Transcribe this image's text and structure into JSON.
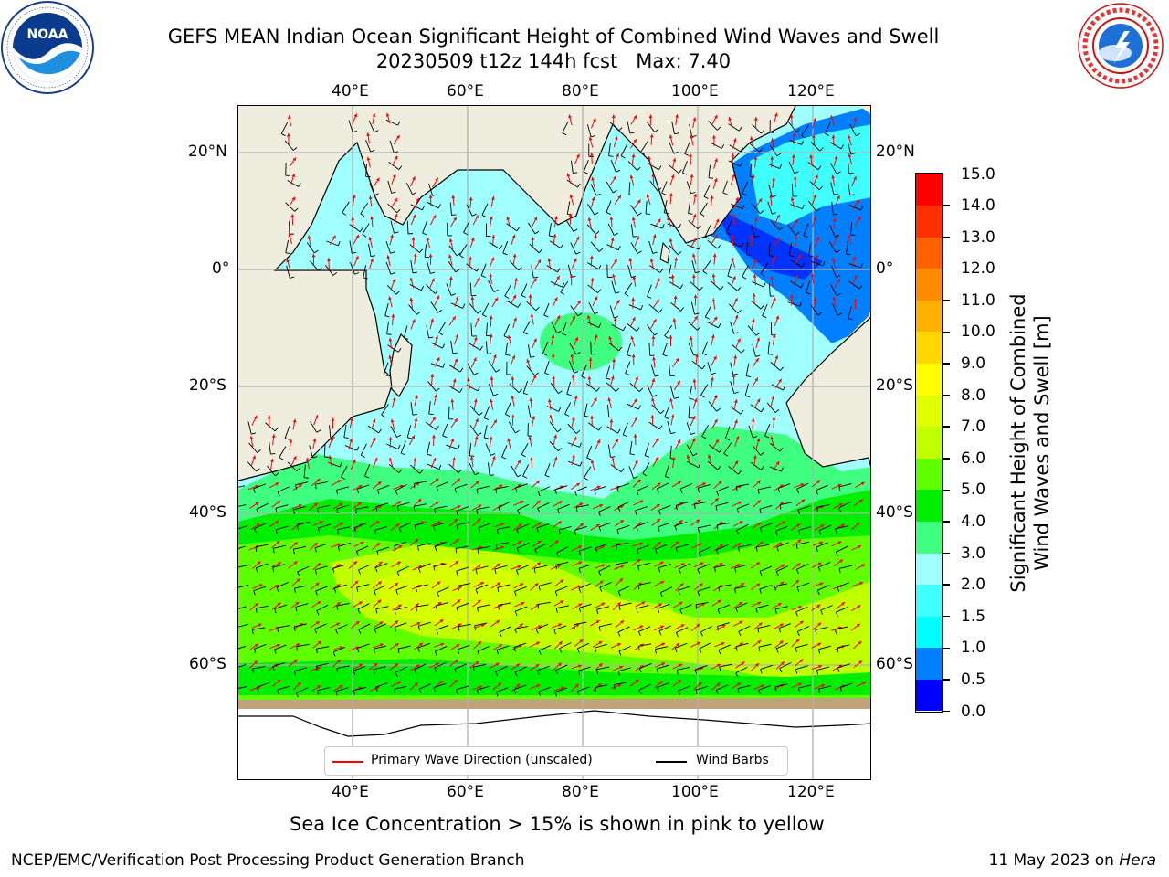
{
  "title": {
    "line1": "GEFS MEAN Indian Ocean Significant Height of Combined Wind Waves and Swell",
    "line2": "20230509 t12z 144h fcst   Max: 7.40"
  },
  "logos": {
    "left": {
      "icon": "noaa-logo-icon",
      "name": "NOAA",
      "ring_text": "NATIONAL OCEANIC AND ATMOSPHERIC ADMINISTRATION · U.S. DEPARTMENT OF COMMERCE"
    },
    "right": {
      "icon": "nws-logo-icon",
      "ring_text": "NATIONAL WEATHER SERVICE"
    }
  },
  "map": {
    "lon_ticks": [
      "40°E",
      "60°E",
      "80°E",
      "100°E",
      "120°E"
    ],
    "lat_ticks": [
      "20°N",
      "0°",
      "20°S",
      "40°S",
      "60°S"
    ],
    "land_color": "#efedde",
    "ice_color": "#ffffff",
    "legend": {
      "wave_label": "Primary Wave Direction (unscaled)",
      "wind_label": "Wind Barbs",
      "wave_color": "#ff0000",
      "wind_color": "#000000"
    }
  },
  "colorbar": {
    "label_line1": "Significant Height of Combined",
    "label_line2": "Wind Waves and Swell [m]",
    "ticks": [
      "0.0",
      "0.5",
      "1.0",
      "1.5",
      "2.0",
      "3.0",
      "4.0",
      "5.0",
      "6.0",
      "7.0",
      "8.0",
      "9.0",
      "10.0",
      "11.0",
      "12.0",
      "13.0",
      "14.0",
      "15.0"
    ],
    "colors": [
      "#0000ff",
      "#0080ff",
      "#00ffff",
      "#40ffff",
      "#a0ffff",
      "#40ff80",
      "#00ee00",
      "#60ff00",
      "#c0ff00",
      "#e0ff00",
      "#ffff00",
      "#ffd700",
      "#ffb000",
      "#ff8c00",
      "#ff6000",
      "#ff3000",
      "#ff0000"
    ]
  },
  "footer": {
    "note": "Sea Ice Concentration > 15% is shown in pink to yellow",
    "left": "NCEP/EMC/Verification Post Processing Product Generation Branch",
    "right_date": "11 May 2023 on ",
    "right_host": "Hera"
  }
}
